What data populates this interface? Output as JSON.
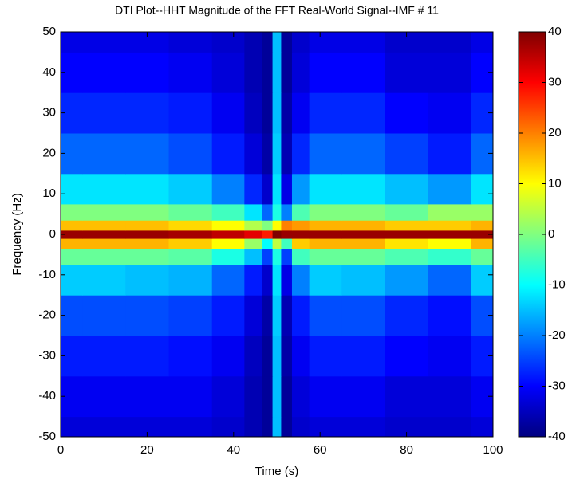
{
  "chart_data": {
    "type": "heatmap",
    "title": "DTI Plot--HHT Magnitude of the FFT Real-World Signal--IMF # 11",
    "xlabel": "Time (s)",
    "ylabel": "Frequency (Hz)",
    "colormap": "jet",
    "x": [
      0,
      10,
      20,
      30,
      40,
      45,
      48,
      50,
      52,
      55,
      60,
      70,
      80,
      90,
      100
    ],
    "y": [
      -50,
      -40,
      -30,
      -20,
      -10,
      -5,
      -2,
      0,
      2,
      5,
      10,
      20,
      30,
      40,
      50
    ],
    "values": [
      [
        -33,
        -33,
        -33,
        -33,
        -34,
        -36,
        -38,
        -15,
        -38,
        -34,
        -33,
        -33,
        -34,
        -34,
        -33
      ],
      [
        -31,
        -31,
        -31,
        -31,
        -33,
        -36,
        -38,
        -15,
        -38,
        -33,
        -31,
        -31,
        -33,
        -33,
        -31
      ],
      [
        -28,
        -28,
        -28,
        -29,
        -31,
        -35,
        -38,
        -15,
        -37,
        -31,
        -28,
        -28,
        -30,
        -31,
        -28
      ],
      [
        -24,
        -24,
        -24,
        -25,
        -28,
        -33,
        -37,
        -14,
        -36,
        -28,
        -24,
        -24,
        -27,
        -29,
        -24
      ],
      [
        -14,
        -14,
        -15,
        -16,
        -22,
        -28,
        -34,
        -12,
        -32,
        -20,
        -14,
        -15,
        -18,
        -22,
        -14
      ],
      [
        -2,
        -2,
        -2,
        -3,
        -8,
        -15,
        -25,
        -8,
        -25,
        -5,
        -2,
        -2,
        -4,
        -6,
        -2
      ],
      [
        16,
        16,
        16,
        14,
        10,
        2,
        -10,
        5,
        -5,
        14,
        16,
        16,
        12,
        10,
        16
      ],
      [
        38,
        38,
        38,
        37,
        35,
        32,
        28,
        40,
        38,
        38,
        38,
        38,
        38,
        38,
        38
      ],
      [
        15,
        15,
        15,
        13,
        10,
        4,
        0,
        10,
        20,
        18,
        16,
        16,
        14,
        14,
        16
      ],
      [
        0,
        0,
        0,
        -2,
        -5,
        -12,
        -22,
        -8,
        -20,
        -4,
        0,
        0,
        -2,
        2,
        2
      ],
      [
        -12,
        -12,
        -12,
        -14,
        -20,
        -27,
        -34,
        -12,
        -32,
        -18,
        -12,
        -12,
        -15,
        -18,
        -12
      ],
      [
        -22,
        -22,
        -22,
        -24,
        -28,
        -33,
        -37,
        -14,
        -36,
        -27,
        -22,
        -22,
        -25,
        -28,
        -22
      ],
      [
        -27,
        -27,
        -27,
        -28,
        -31,
        -35,
        -38,
        -15,
        -37,
        -31,
        -27,
        -27,
        -30,
        -31,
        -27
      ],
      [
        -30,
        -30,
        -30,
        -31,
        -33,
        -36,
        -38,
        -15,
        -38,
        -33,
        -30,
        -30,
        -33,
        -33,
        -30
      ],
      [
        -32,
        -32,
        -32,
        -33,
        -34,
        -36,
        -38,
        -15,
        -38,
        -34,
        -32,
        -32,
        -34,
        -34,
        -32
      ]
    ],
    "xlim": [
      0,
      100
    ],
    "xticks": [
      0,
      20,
      40,
      60,
      80,
      100
    ],
    "ylim": [
      -50,
      50
    ],
    "yticks": [
      -50,
      -40,
      -30,
      -20,
      -10,
      0,
      10,
      20,
      30,
      40,
      50
    ],
    "clim": [
      -40,
      40
    ],
    "cticks": [
      -40,
      -30,
      -20,
      -10,
      0,
      10,
      20,
      30,
      40
    ]
  }
}
